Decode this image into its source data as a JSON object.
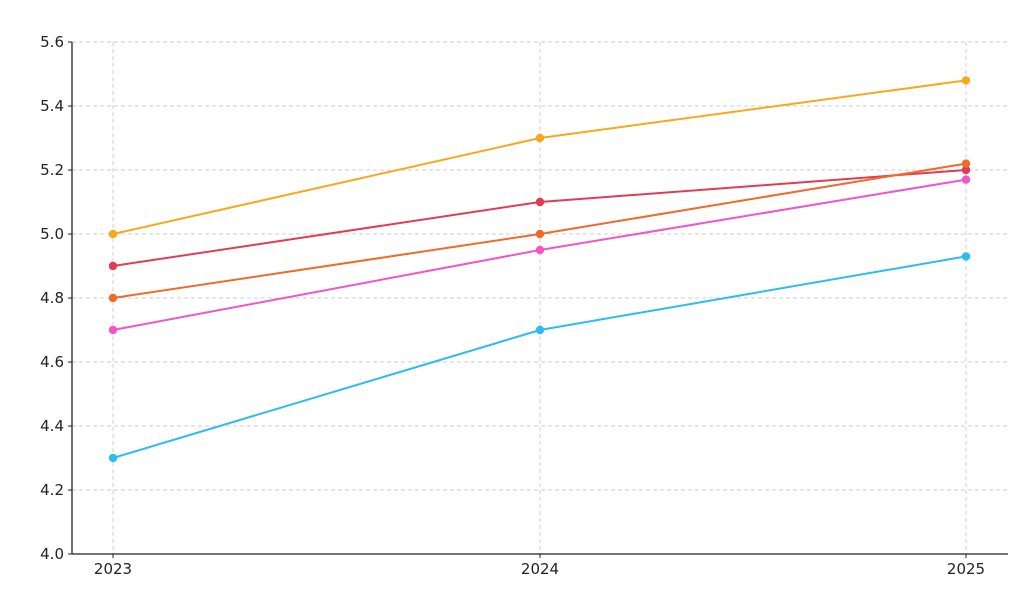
{
  "chart_data": {
    "type": "line",
    "title": "",
    "xlabel": "",
    "ylabel": "",
    "x": [
      "2023",
      "2024",
      "2025"
    ],
    "ylim": [
      4.0,
      5.6
    ],
    "yticks": [
      "4.0",
      "4.2",
      "4.4",
      "4.6",
      "4.8",
      "5.0",
      "5.2",
      "5.4",
      "5.6"
    ],
    "grid": true,
    "legend": "none",
    "series": [
      {
        "color": "#f7a91c",
        "values": [
          5.0,
          5.3,
          5.48
        ]
      },
      {
        "color": "#e23c55",
        "values": [
          4.9,
          5.1,
          5.2
        ]
      },
      {
        "color": "#f06a2a",
        "values": [
          4.8,
          5.0,
          5.22
        ]
      },
      {
        "color": "#f155c7",
        "values": [
          4.7,
          4.95,
          5.17
        ]
      },
      {
        "color": "#2bbcf0",
        "values": [
          4.3,
          4.7,
          4.93
        ]
      }
    ]
  }
}
